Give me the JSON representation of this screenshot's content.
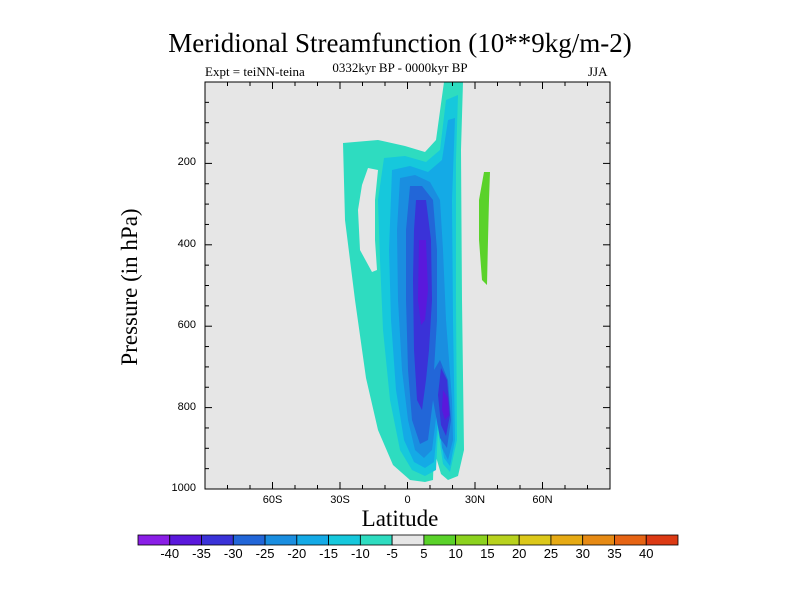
{
  "chart_data": {
    "type": "contour",
    "title": "Meridional Streamfunction (10**9kg/m-2)",
    "subtitle_left": "Expt = teiNN-teina",
    "subtitle_center": "0332kyr BP - 0000kyr BP",
    "subtitle_right": "JJA",
    "xlabel": "Latitude",
    "ylabel": "Pressure (in hPa)",
    "xlim": [
      -90,
      90
    ],
    "ylim": [
      1000,
      0
    ],
    "xticks": [
      {
        "value": -60,
        "label": "60S"
      },
      {
        "value": -30,
        "label": "30S"
      },
      {
        "value": 0,
        "label": "0"
      },
      {
        "value": 30,
        "label": "30N"
      },
      {
        "value": 60,
        "label": "60N"
      }
    ],
    "yticks": [
      {
        "value": 200,
        "label": "200"
      },
      {
        "value": 400,
        "label": "400"
      },
      {
        "value": 600,
        "label": "600"
      },
      {
        "value": 800,
        "label": "800"
      },
      {
        "value": 1000,
        "label": "1000"
      }
    ],
    "colorbar": {
      "levels": [
        -40,
        -35,
        -30,
        -25,
        -20,
        -15,
        -10,
        -5,
        5,
        10,
        15,
        20,
        25,
        30,
        35,
        40
      ],
      "labels": [
        "-40",
        "-35",
        "-30",
        "-25",
        "-20",
        "-15",
        "-10",
        "-5",
        "5",
        "10",
        "15",
        "20",
        "25",
        "30",
        "35",
        "40"
      ],
      "colors": [
        "#8a1ee6",
        "#5a18dc",
        "#3a32d8",
        "#2266d8",
        "#1a8ee0",
        "#14aae6",
        "#16c8dc",
        "#2edcc0",
        "#e6e6e6",
        "#5ad22a",
        "#8cd21e",
        "#b8d21e",
        "#dcc81a",
        "#e6aa14",
        "#e68a14",
        "#e66414",
        "#dc3a14"
      ]
    },
    "background_color": "#e6e6e6",
    "features": [
      {
        "name": "negative cell near equator",
        "min_value": -35,
        "center_lat": 8,
        "center_pressure": 480
      },
      {
        "name": "negative cell 18N lower",
        "min_value": -35,
        "center_lat": 18,
        "center_pressure": 760
      },
      {
        "name": "positive cell",
        "max_value": 5,
        "center_lat": 30,
        "center_pressure": 330
      }
    ]
  }
}
